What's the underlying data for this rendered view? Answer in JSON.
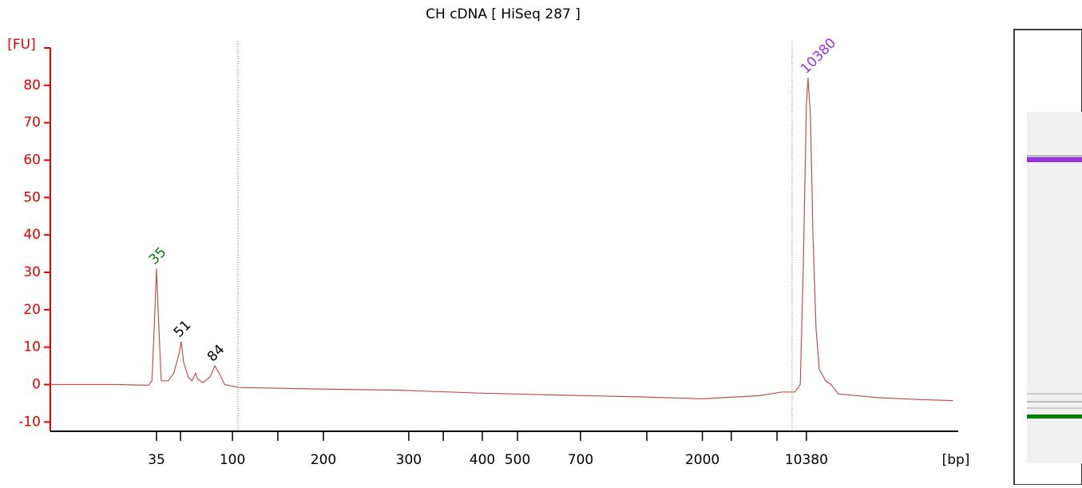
{
  "chart_data": {
    "type": "line",
    "title": "CH cDNA  [ HiSeq 287 ]",
    "y_label": "[FU]",
    "x_label": "[bp]",
    "color": "#c0504d",
    "axis_color": "#e00000",
    "x": [
      20.0,
      23.8,
      25.4,
      25.6,
      25.72,
      25.85,
      25.98,
      26.11,
      26.5,
      26.8,
      27.08,
      27.21,
      27.34,
      27.6,
      27.8,
      28.0,
      28.1,
      28.4,
      28.8,
      29.06,
      29.3,
      29.6,
      30.4,
      34.8,
      39.2,
      43.6,
      48.0,
      52.4,
      55.9,
      59.0,
      60.3,
      61.0,
      61.3,
      61.46,
      61.64,
      61.73,
      61.86,
      62.0,
      62.17,
      62.35,
      62.7,
      63.0,
      63.4,
      65.6,
      67.8,
      69.7
    ],
    "values": [
      0,
      0,
      -0.2,
      1,
      15,
      31,
      15,
      1,
      1,
      3,
      8,
      11.5,
      6,
      2,
      1,
      3,
      1.5,
      0.5,
      2,
      5,
      3,
      0,
      -0.8,
      -1.2,
      -1.5,
      -2.3,
      -2.8,
      -3.3,
      -3.8,
      -3,
      -2,
      -2,
      0,
      30,
      75,
      82,
      72,
      40,
      15,
      4,
      1,
      0,
      -2.5,
      -3.5,
      -4,
      -4.3
    ],
    "xlim": [
      20,
      70
    ],
    "ylim": [
      -12.5,
      90
    ],
    "yticks": [
      -10,
      0,
      10,
      20,
      30,
      40,
      50,
      60,
      70,
      80
    ],
    "xticks": [
      {
        "value": 25.85,
        "label": "35"
      },
      {
        "value": 27.17,
        "label": null
      },
      {
        "value": 30.03,
        "label": "100"
      },
      {
        "value": 32.53,
        "label": null
      },
      {
        "value": 35.04,
        "label": "200"
      },
      {
        "value": 39.74,
        "label": "300"
      },
      {
        "value": 41.64,
        "label": null
      },
      {
        "value": 43.79,
        "label": "400"
      },
      {
        "value": 45.73,
        "label": "500"
      },
      {
        "value": 49.2,
        "label": "700"
      },
      {
        "value": 52.85,
        "label": null
      },
      {
        "value": 55.91,
        "label": "2000"
      },
      {
        "value": 57.5,
        "label": null
      },
      {
        "value": 60.02,
        "label": null
      },
      {
        "value": 61.64,
        "label": "10380"
      }
    ],
    "vlines": [
      30.33,
      60.85
    ],
    "annotations": [
      {
        "text": "35",
        "x": 25.85,
        "y": 31,
        "color": "#008000"
      },
      {
        "text": "51",
        "x": 27.21,
        "y": 11.5,
        "color": "#000000"
      },
      {
        "text": "84",
        "x": 29.06,
        "y": 5,
        "color": "#000000"
      },
      {
        "text": "10380",
        "x": 61.73,
        "y": 82,
        "color": "#9b30e0"
      }
    ]
  }
}
